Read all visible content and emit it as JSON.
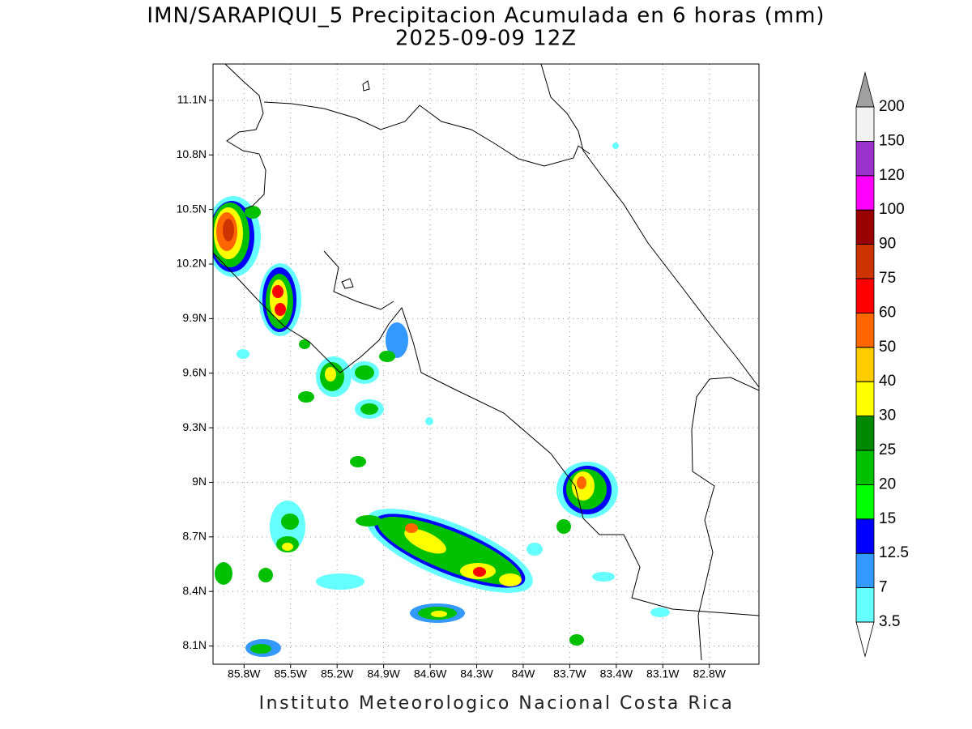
{
  "title": "IMN/SARAPIQUI_5 Precipitacion Acumulada en 6 horas (mm)",
  "subtitle": "2025-09-09 12Z",
  "map": {
    "lonlim": [
      -86.0,
      -82.48
    ],
    "latlim": [
      8.0,
      11.3
    ],
    "lat_ticks": [
      {
        "value": 8.1,
        "label": "8.1N"
      },
      {
        "value": 8.4,
        "label": "8.4N"
      },
      {
        "value": 8.7,
        "label": "8.7N"
      },
      {
        "value": 9.0,
        "label": "9N"
      },
      {
        "value": 9.3,
        "label": "9.3N"
      },
      {
        "value": 9.6,
        "label": "9.6N"
      },
      {
        "value": 9.9,
        "label": "9.9N"
      },
      {
        "value": 10.2,
        "label": "10.2N"
      },
      {
        "value": 10.5,
        "label": "10.5N"
      },
      {
        "value": 10.8,
        "label": "10.8N"
      },
      {
        "value": 11.1,
        "label": "11.1N"
      }
    ],
    "lon_ticks": [
      {
        "value": -85.8,
        "label": "85.8W"
      },
      {
        "value": -85.5,
        "label": "85.5W"
      },
      {
        "value": -85.2,
        "label": "85.2W"
      },
      {
        "value": -84.9,
        "label": "84.9W"
      },
      {
        "value": -84.6,
        "label": "84.6W"
      },
      {
        "value": -84.3,
        "label": "84.3W"
      },
      {
        "value": -84.0,
        "label": "84W"
      },
      {
        "value": -83.7,
        "label": "83.7W"
      },
      {
        "value": -83.4,
        "label": "83.4W"
      },
      {
        "value": -83.1,
        "label": "83.1W"
      },
      {
        "value": -82.8,
        "label": "82.8W"
      }
    ]
  },
  "colorbar": {
    "levels": [
      3.5,
      7,
      12.5,
      15,
      20,
      25,
      30,
      40,
      50,
      60,
      75,
      90,
      100,
      120,
      150,
      200
    ],
    "colors": [
      "#66ffff",
      "#3399ff",
      "#0000ff",
      "#00ff00",
      "#00c000",
      "#008800",
      "#ffff00",
      "#ffcc00",
      "#ff6600",
      "#ff0000",
      "#cc3300",
      "#990000",
      "#ff00ff",
      "#9933cc",
      "#f2f2f2"
    ],
    "under_color": "#ffffff",
    "over_color": "#a0a0a0"
  },
  "footer": "Instituto Meteorologico Nacional Costa Rica"
}
